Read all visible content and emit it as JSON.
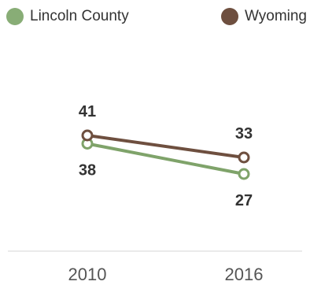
{
  "chart_data": {
    "type": "line",
    "x": [
      "2010",
      "2016"
    ],
    "series": [
      {
        "name": "Lincoln County",
        "values": [
          38,
          27
        ],
        "color": "#7fa36a"
      },
      {
        "name": "Wyoming",
        "values": [
          41,
          33
        ],
        "color": "#6e4f3f"
      }
    ],
    "legend_position": "top",
    "grid": false,
    "ylim": [
      0,
      80
    ]
  }
}
